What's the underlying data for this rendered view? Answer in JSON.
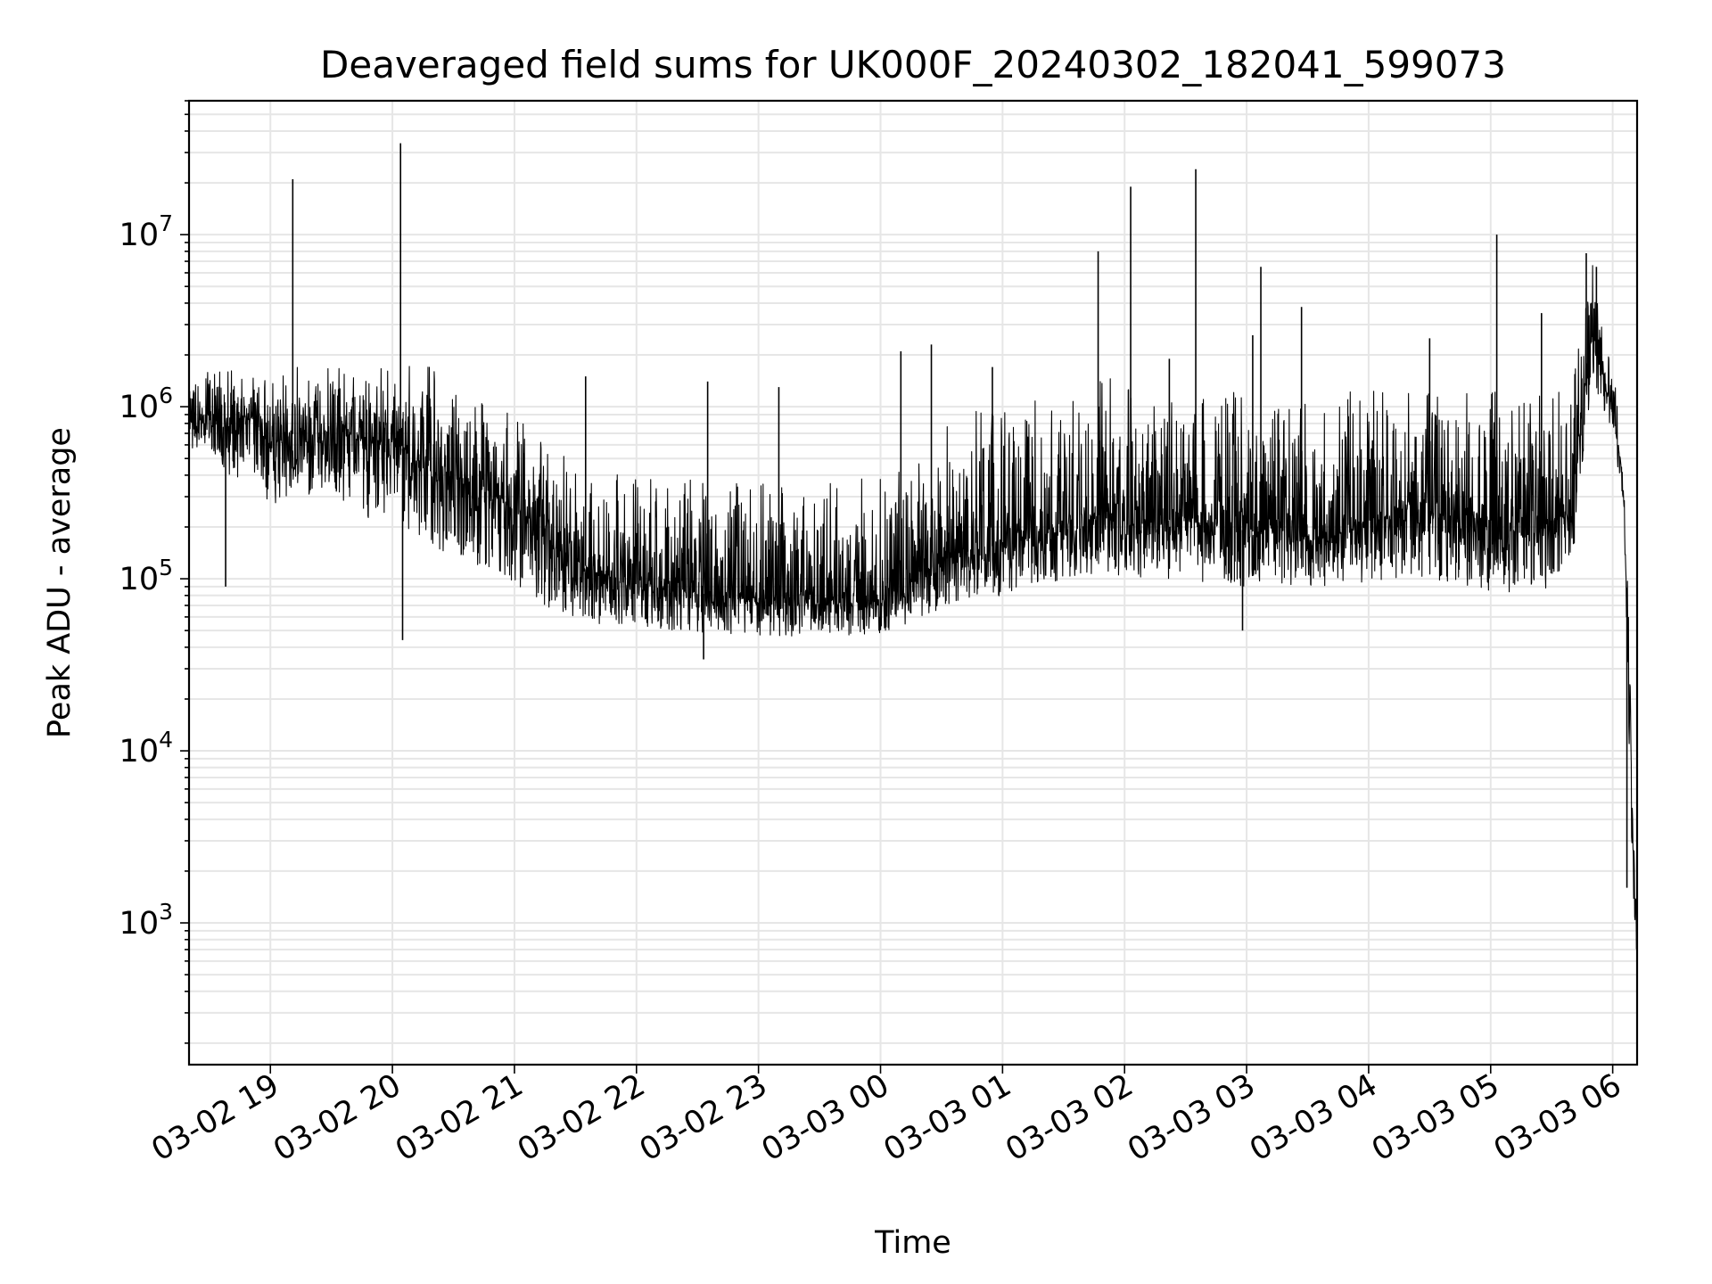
{
  "chart_data": {
    "type": "line",
    "title": "Deaveraged field sums for UK000F_20240302_182041_599073",
    "xlabel": "Time",
    "ylabel": "Peak ADU - average",
    "yscale": "log",
    "ylim": [
      150,
      60000000
    ],
    "xlim": [
      "2024-03-02 18:20",
      "2024-03-03 06:12"
    ],
    "grid": true,
    "grid_color": "#e6e6e6",
    "line_color": "#000000",
    "x_ticks": [
      {
        "t": "2024-03-02 19:00",
        "label": "03-02 19"
      },
      {
        "t": "2024-03-02 20:00",
        "label": "03-02 20"
      },
      {
        "t": "2024-03-02 21:00",
        "label": "03-02 21"
      },
      {
        "t": "2024-03-02 22:00",
        "label": "03-02 22"
      },
      {
        "t": "2024-03-02 23:00",
        "label": "03-02 23"
      },
      {
        "t": "2024-03-03 00:00",
        "label": "03-03 00"
      },
      {
        "t": "2024-03-03 01:00",
        "label": "03-03 01"
      },
      {
        "t": "2024-03-03 02:00",
        "label": "03-03 02"
      },
      {
        "t": "2024-03-03 03:00",
        "label": "03-03 03"
      },
      {
        "t": "2024-03-03 04:00",
        "label": "03-03 04"
      },
      {
        "t": "2024-03-03 05:00",
        "label": "03-03 05"
      },
      {
        "t": "2024-03-03 06:00",
        "label": "03-03 06"
      }
    ],
    "y_ticks": [
      {
        "value": 1000,
        "base": "10",
        "exp": "3"
      },
      {
        "value": 10000,
        "base": "10",
        "exp": "4"
      },
      {
        "value": 100000,
        "base": "10",
        "exp": "5"
      },
      {
        "value": 1000000,
        "base": "10",
        "exp": "6"
      },
      {
        "value": 10000000,
        "base": "10",
        "exp": "7"
      }
    ],
    "series": [
      {
        "x": [
          "2024-03-02 18:20",
          "2024-03-02 18:30",
          "2024-03-02 18:40",
          "2024-03-02 18:50",
          "2024-03-02 19:00",
          "2024-03-02 19:10",
          "2024-03-02 19:20",
          "2024-03-02 19:30",
          "2024-03-02 19:40",
          "2024-03-02 19:50",
          "2024-03-02 20:00",
          "2024-03-02 20:10",
          "2024-03-02 20:20",
          "2024-03-02 20:30",
          "2024-03-02 20:40",
          "2024-03-02 20:50",
          "2024-03-02 21:00",
          "2024-03-02 21:20",
          "2024-03-02 21:40",
          "2024-03-02 22:00",
          "2024-03-02 22:20",
          "2024-03-02 22:40",
          "2024-03-02 23:00",
          "2024-03-02 23:20",
          "2024-03-02 23:40",
          "2024-03-03 00:00",
          "2024-03-03 00:20",
          "2024-03-03 00:40",
          "2024-03-03 01:00",
          "2024-03-03 01:20",
          "2024-03-03 01:40",
          "2024-03-03 01:50",
          "2024-03-03 02:00",
          "2024-03-03 02:20",
          "2024-03-03 02:40",
          "2024-03-03 03:00",
          "2024-03-03 03:20",
          "2024-03-03 03:40",
          "2024-03-03 04:00",
          "2024-03-03 04:20",
          "2024-03-03 04:40",
          "2024-03-03 05:00",
          "2024-03-03 05:20",
          "2024-03-03 05:40",
          "2024-03-03 05:50",
          "2024-03-03 06:00",
          "2024-03-03 06:05",
          "2024-03-03 06:08",
          "2024-03-03 06:10",
          "2024-03-03 06:12"
        ],
        "y": [
          800000,
          900000,
          700000,
          850000,
          600000,
          700000,
          650000,
          750000,
          700000,
          600000,
          650000,
          500000,
          450000,
          400000,
          350000,
          300000,
          250000,
          150000,
          110000,
          90000,
          85000,
          80000,
          75000,
          70000,
          72000,
          75000,
          110000,
          140000,
          160000,
          180000,
          200000,
          250000,
          200000,
          220000,
          210000,
          190000,
          180000,
          170000,
          220000,
          250000,
          230000,
          200000,
          180000,
          250000,
          3000000,
          900000,
          400000,
          30000,
          3000,
          800
        ],
        "lower": [
          500000,
          600000,
          350000,
          450000,
          250000,
          300000,
          280000,
          320000,
          260000,
          220000,
          250000,
          170000,
          150000,
          140000,
          120000,
          100000,
          90000,
          60000,
          55000,
          52000,
          50000,
          48000,
          47000,
          46000,
          46000,
          47000,
          60000,
          75000,
          80000,
          95000,
          100000,
          110000,
          100000,
          100000,
          95000,
          90000,
          90000,
          85000,
          95000,
          100000,
          95000,
          85000,
          80000,
          100000,
          1500000,
          600000,
          300000,
          10000,
          1500,
          500
        ],
        "upper": [
          1300000,
          1500000,
          1400000,
          1500000,
          1300000,
          1400000,
          1300000,
          1400000,
          1500000,
          1300000,
          1400000,
          1300000,
          1200000,
          1000000,
          900000,
          800000,
          700000,
          400000,
          300000,
          270000,
          260000,
          250000,
          240000,
          230000,
          240000,
          260000,
          400000,
          550000,
          650000,
          700000,
          800000,
          1000000,
          800000,
          850000,
          800000,
          750000,
          700000,
          700000,
          850000,
          900000,
          850000,
          800000,
          700000,
          1000000,
          6000000,
          1500000,
          500000,
          60000,
          6000,
          1000
        ]
      }
    ],
    "spikes": [
      {
        "t": "2024-03-02 19:11",
        "value": 21000000
      },
      {
        "t": "2024-03-02 20:04",
        "value": 34000000
      },
      {
        "t": "2024-03-03 01:47",
        "value": 8000000
      },
      {
        "t": "2024-03-03 02:03",
        "value": 19000000
      },
      {
        "t": "2024-03-03 02:35",
        "value": 24000000
      },
      {
        "t": "2024-03-03 03:07",
        "value": 6500000
      },
      {
        "t": "2024-03-03 03:03",
        "value": 2600000
      },
      {
        "t": "2024-03-03 03:27",
        "value": 3800000
      },
      {
        "t": "2024-03-03 05:03",
        "value": 10000000
      },
      {
        "t": "2024-03-03 05:25",
        "value": 3500000
      },
      {
        "t": "2024-03-03 05:47",
        "value": 7800000
      },
      {
        "t": "2024-03-03 05:52",
        "value": 6500000
      },
      {
        "t": "2024-03-03 00:25",
        "value": 2300000
      },
      {
        "t": "2024-03-03 00:10",
        "value": 2100000
      },
      {
        "t": "2024-03-02 21:35",
        "value": 1500000
      },
      {
        "t": "2024-03-02 22:35",
        "value": 1400000
      },
      {
        "t": "2024-03-03 04:30",
        "value": 2500000
      },
      {
        "t": "2024-03-03 02:22",
        "value": 1900000
      },
      {
        "t": "2024-03-02 23:10",
        "value": 1300000
      },
      {
        "t": "2024-03-03 00:55",
        "value": 1700000
      },
      {
        "t": "2024-03-02 18:38",
        "value": 90000
      },
      {
        "t": "2024-03-02 20:05",
        "value": 44000
      },
      {
        "t": "2024-03-02 22:33",
        "value": 34000
      },
      {
        "t": "2024-03-03 02:58",
        "value": 50000
      },
      {
        "t": "2024-03-03 06:07",
        "value": 1600
      }
    ]
  }
}
